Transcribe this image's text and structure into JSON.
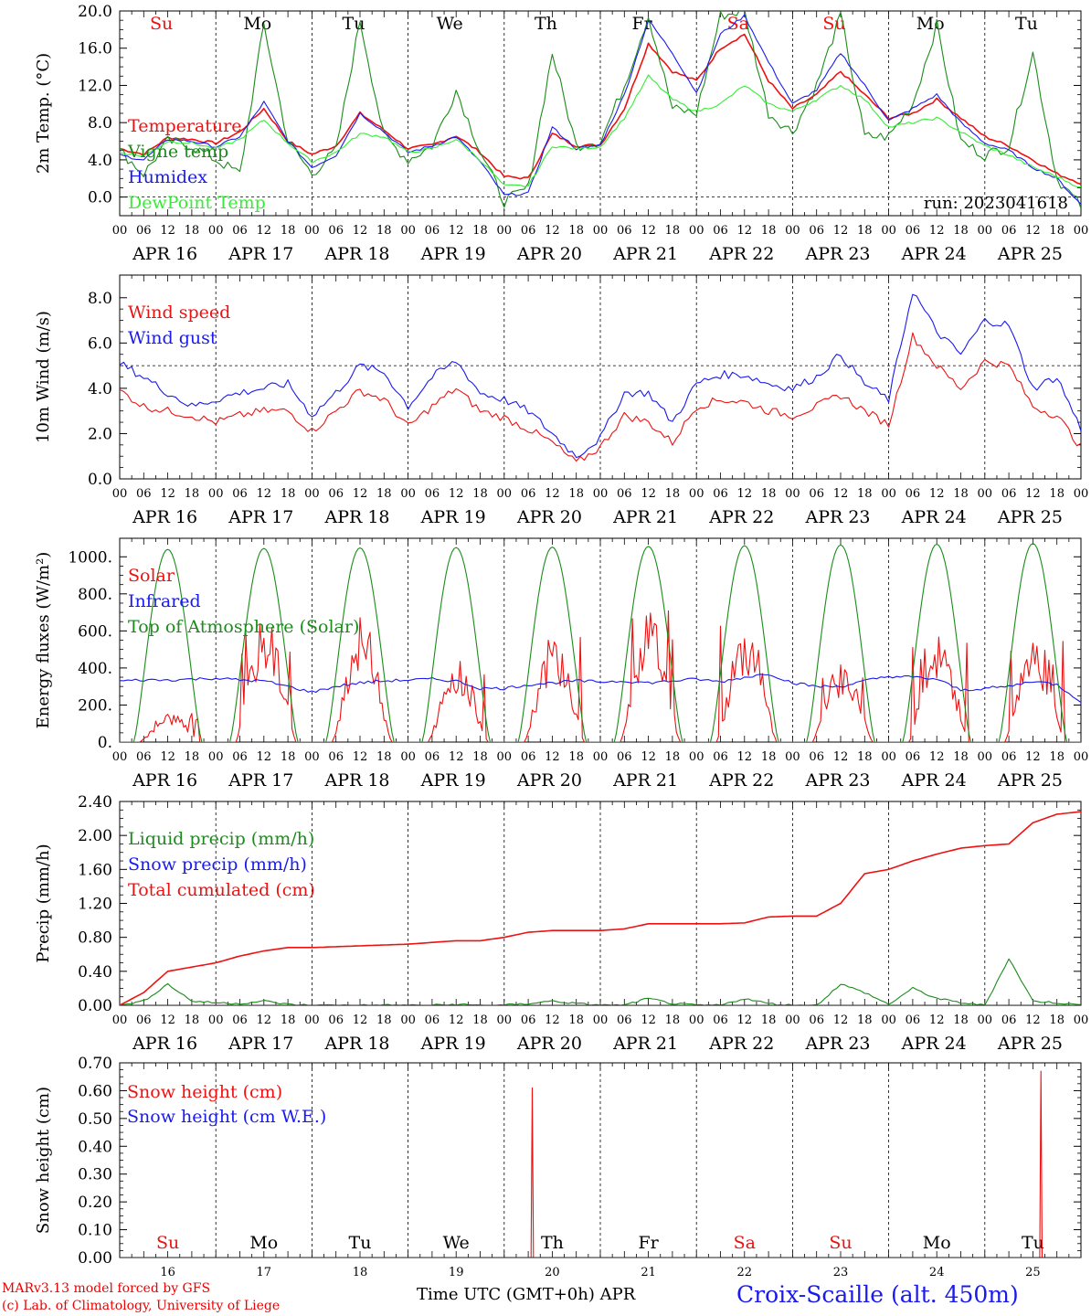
{
  "run_label": "run: 2023041618",
  "days": {
    "weekday": [
      "Su",
      "Mo",
      "Tu",
      "We",
      "Th",
      "Fr",
      "Sa",
      "Su",
      "Mo",
      "Tu"
    ],
    "weekday_colors": [
      "#ee1111",
      "#000000",
      "#000000",
      "#000000",
      "#000000",
      "#000000",
      "#ee1111",
      "#ee1111",
      "#000000",
      "#000000"
    ],
    "date_labels": [
      "APR 16",
      "APR 17",
      "APR 18",
      "APR 19",
      "APR 20",
      "APR 21",
      "APR 22",
      "APR 23",
      "APR 24",
      "APR 25"
    ],
    "day_numbers": [
      "16",
      "17",
      "18",
      "19",
      "20",
      "21",
      "22",
      "23",
      "24",
      "25"
    ],
    "hour_ticks": [
      "00",
      "06",
      "12",
      "18"
    ],
    "end_hour_tick": "00"
  },
  "footer": {
    "credit_line1": "MARv3.13 model forced by GFS",
    "credit_line2": "(c) Lab. of Climatology, University of Liege",
    "x_title": "Time UTC (GMT+0h) APR",
    "station": "Croix-Scaille (alt. 450m)"
  },
  "colors": {
    "red": "#ee1111",
    "green": "#1a8c1a",
    "blue": "#1a1aee",
    "light_green": "#33ee33"
  },
  "chart_data": [
    {
      "id": "temperature",
      "type": "line",
      "ylabel": "2m Temp. (°C)",
      "ylim": [
        -2,
        20
      ],
      "yticks": [
        "0.0",
        "4.0",
        "8.0",
        "12.0",
        "16.0",
        "20.0"
      ],
      "ref_line": 0,
      "x_unit": "hours since APR 16 00 UTC",
      "step_hours": 6,
      "series": [
        {
          "name": "Temperature",
          "color": "#ee1111",
          "values": [
            5.2,
            4.6,
            6.4,
            6.2,
            5.8,
            7.0,
            9.5,
            6.0,
            4.6,
            5.5,
            9.0,
            7.2,
            5.2,
            5.6,
            6.6,
            4.8,
            2.2,
            2.0,
            6.8,
            5.5,
            5.6,
            9.5,
            16.5,
            13.5,
            12.5,
            16.0,
            17.5,
            12.5,
            9.5,
            11.0,
            13.5,
            11.0,
            8.5,
            9.0,
            10.5,
            8.5,
            6.5,
            5.5,
            4.0,
            2.5,
            1.5
          ]
        },
        {
          "name": "Vigne temp",
          "color": "#1a8c1a",
          "values": [
            5.0,
            2.5,
            6.0,
            5.5,
            4.0,
            2.5,
            18.5,
            6.0,
            2.5,
            5.0,
            19.0,
            6.5,
            4.0,
            5.5,
            11.5,
            5.0,
            -0.5,
            1.0,
            15.5,
            5.5,
            6.0,
            12.0,
            19.5,
            9.5,
            9.0,
            19.5,
            20.0,
            9.0,
            7.0,
            12.0,
            19.5,
            6.5,
            6.5,
            10.0,
            18.5,
            6.0,
            4.5,
            5.5,
            15.5,
            2.0,
            -1.0
          ]
        },
        {
          "name": "Humidex",
          "color": "#1a1aee",
          "values": [
            4.5,
            4.0,
            6.2,
            6.0,
            5.4,
            6.5,
            10.2,
            6.0,
            3.2,
            4.5,
            9.0,
            7.0,
            4.8,
            5.5,
            6.5,
            3.8,
            0.2,
            0.4,
            7.5,
            5.2,
            5.6,
            11.0,
            19.0,
            15.5,
            11.2,
            17.5,
            19.5,
            14.5,
            10.0,
            11.5,
            15.5,
            12.0,
            8.2,
            9.5,
            11.0,
            8.0,
            5.8,
            5.0,
            3.2,
            2.0,
            -0.8
          ]
        },
        {
          "name": "DewPoint Temp",
          "color": "#33ee33",
          "values": [
            4.8,
            4.4,
            6.0,
            5.8,
            5.2,
            6.2,
            8.3,
            5.8,
            3.8,
            4.8,
            6.8,
            6.5,
            4.8,
            5.2,
            6.2,
            4.0,
            1.2,
            1.2,
            5.5,
            5.2,
            5.4,
            8.5,
            13.0,
            10.5,
            9.2,
            10.0,
            12.0,
            10.0,
            9.2,
            10.5,
            12.0,
            10.5,
            7.5,
            8.0,
            8.5,
            7.0,
            5.5,
            4.5,
            3.2,
            2.2,
            1.0
          ]
        }
      ]
    },
    {
      "id": "wind",
      "type": "line",
      "ylabel": "10m Wind (m/s)",
      "ylim": [
        0,
        9
      ],
      "yticks": [
        "0.0",
        "2.0",
        "4.0",
        "6.0",
        "8.0"
      ],
      "ref_line": 5,
      "x_unit": "hours since APR 16 00 UTC",
      "step_hours": 6,
      "series": [
        {
          "name": "Wind speed",
          "color": "#ee1111",
          "values": [
            3.9,
            3.2,
            3.0,
            2.8,
            2.5,
            2.8,
            3.0,
            3.0,
            2.1,
            3.0,
            3.9,
            3.5,
            2.3,
            3.2,
            4.0,
            3.0,
            2.7,
            2.2,
            1.6,
            0.7,
            1.4,
            2.8,
            2.5,
            1.6,
            3.2,
            3.5,
            3.4,
            3.0,
            2.8,
            3.2,
            3.7,
            3.0,
            2.4,
            6.3,
            5.0,
            4.0,
            5.2,
            5.0,
            3.2,
            2.8,
            1.4
          ]
        },
        {
          "name": "Wind gust",
          "color": "#1a1aee",
          "values": [
            5.1,
            4.5,
            3.8,
            3.2,
            3.5,
            3.8,
            4.0,
            4.2,
            2.8,
            3.8,
            5.0,
            4.7,
            3.2,
            4.5,
            5.2,
            3.8,
            3.5,
            3.0,
            2.0,
            1.0,
            1.8,
            3.8,
            3.8,
            2.5,
            4.2,
            4.6,
            4.6,
            4.2,
            4.0,
            4.5,
            5.5,
            4.2,
            3.5,
            8.3,
            6.5,
            5.5,
            7.0,
            6.8,
            4.0,
            4.5,
            2.2
          ]
        }
      ]
    },
    {
      "id": "energy",
      "type": "line",
      "ylabel": "Energy fluxes (W/m²)",
      "ylim": [
        0,
        1100
      ],
      "yticks": [
        "0.",
        "200.",
        "400.",
        "600.",
        "800.",
        "1000."
      ],
      "x_unit": "hours since APR 16 00 UTC",
      "series": [
        {
          "name": "Solar",
          "color": "#ee1111",
          "peaks": [
            160,
            680,
            680,
            450,
            590,
            710,
            650,
            440,
            580,
            560
          ]
        },
        {
          "name": "Infrared",
          "color": "#1a1aee",
          "step_hours": 6,
          "values": [
            330,
            335,
            335,
            340,
            345,
            335,
            330,
            300,
            270,
            300,
            320,
            330,
            335,
            340,
            330,
            290,
            290,
            310,
            320,
            330,
            325,
            330,
            320,
            330,
            340,
            325,
            350,
            370,
            320,
            300,
            300,
            330,
            355,
            350,
            340,
            280,
            290,
            300,
            330,
            310,
            220
          ]
        },
        {
          "name": "Top of Atmosphere (Solar)",
          "color": "#1a8c1a",
          "peaks": [
            1040,
            1045,
            1048,
            1050,
            1052,
            1056,
            1060,
            1064,
            1068,
            1072
          ]
        }
      ]
    },
    {
      "id": "precip",
      "type": "line",
      "ylabel": "Precip (mm/h)",
      "ylim": [
        0,
        2.4
      ],
      "yticks": [
        "0.00",
        "0.40",
        "0.80",
        "1.20",
        "1.60",
        "2.00",
        "2.40"
      ],
      "x_unit": "hours since APR 16 00 UTC",
      "step_hours": 6,
      "series": [
        {
          "name": "Liquid precip (mm/h)",
          "color": "#1a8c1a",
          "values": [
            0.0,
            0.05,
            0.25,
            0.05,
            0.03,
            0.02,
            0.05,
            0.01,
            0.0,
            0.0,
            0.0,
            0.0,
            0.0,
            0.0,
            0.01,
            0.0,
            0.0,
            0.02,
            0.05,
            0.02,
            0.0,
            0.0,
            0.08,
            0.02,
            0.0,
            0.0,
            0.08,
            0.02,
            0.0,
            0.0,
            0.25,
            0.15,
            0.01,
            0.2,
            0.08,
            0.03,
            0.0,
            0.55,
            0.05,
            0.03,
            0.0
          ]
        },
        {
          "name": "Snow precip (mm/h)",
          "color": "#1a1aee",
          "values": [
            0,
            0,
            0,
            0,
            0,
            0,
            0,
            0,
            0,
            0,
            0,
            0,
            0,
            0,
            0,
            0,
            0,
            0,
            0,
            0,
            0,
            0,
            0,
            0,
            0,
            0,
            0,
            0,
            0,
            0,
            0,
            0,
            0,
            0,
            0,
            0,
            0,
            0,
            0,
            0,
            0
          ]
        },
        {
          "name": "Total cumulated (cm)",
          "color": "#ee1111",
          "values": [
            0.0,
            0.15,
            0.4,
            0.45,
            0.5,
            0.58,
            0.64,
            0.68,
            0.68,
            0.69,
            0.7,
            0.71,
            0.72,
            0.74,
            0.76,
            0.76,
            0.8,
            0.86,
            0.88,
            0.88,
            0.88,
            0.9,
            0.96,
            0.96,
            0.96,
            0.96,
            0.97,
            1.04,
            1.05,
            1.05,
            1.2,
            1.55,
            1.6,
            1.7,
            1.78,
            1.85,
            1.88,
            1.9,
            2.15,
            2.25,
            2.28
          ]
        }
      ]
    },
    {
      "id": "snow",
      "type": "line",
      "ylabel": "Snow height (cm)",
      "ylim": [
        0,
        0.7
      ],
      "yticks": [
        "0.00",
        "0.10",
        "0.20",
        "0.30",
        "0.40",
        "0.50",
        "0.60",
        "0.70"
      ],
      "x_unit": "hours since APR 16 00 UTC",
      "series": [
        {
          "name": "Snow height (cm)",
          "color": "#ee1111",
          "spikes": [
            {
              "x": 103,
              "y": 0.61
            },
            {
              "x": 230,
              "y": 0.67
            }
          ]
        },
        {
          "name": "Snow height (cm W.E.)",
          "color": "#1a1aee",
          "spikes": []
        }
      ]
    }
  ]
}
